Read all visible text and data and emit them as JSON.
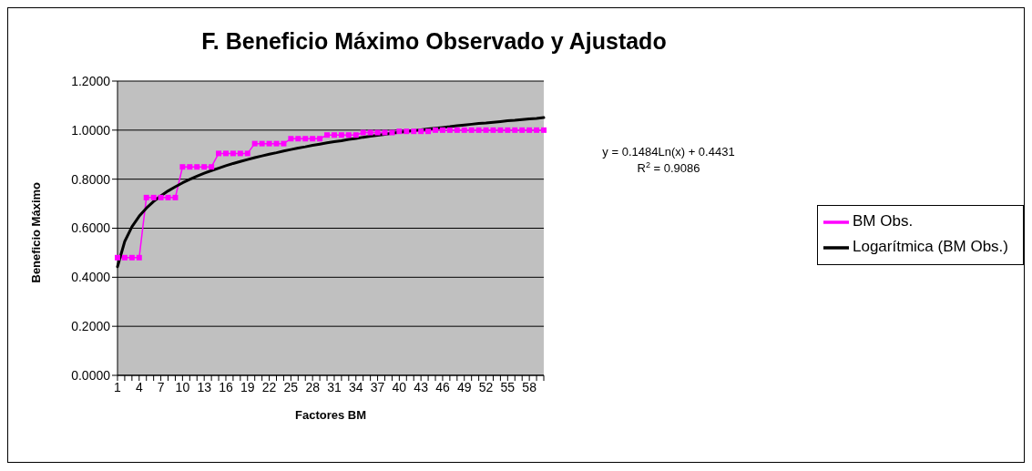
{
  "chart_data": {
    "type": "line",
    "title": "F. Beneficio Máximo Observado y Ajustado",
    "xlabel": "Factores BM",
    "ylabel": "Beneficio Máximo",
    "categories": [
      "1",
      null,
      null,
      "4",
      null,
      null,
      "7",
      null,
      null,
      "10",
      null,
      null,
      "13",
      null,
      null,
      "16",
      null,
      null,
      "19",
      null,
      null,
      "22",
      null,
      null,
      "25",
      null,
      null,
      "28",
      null,
      null,
      "31",
      null,
      null,
      "34",
      null,
      null,
      "37",
      null,
      null,
      "40",
      null,
      null,
      "43",
      null,
      null,
      "46",
      null,
      null,
      "49",
      null,
      null,
      "52",
      null,
      null,
      "55",
      null,
      null,
      "58",
      null,
      null
    ],
    "series": [
      {
        "name": "BM Obs.",
        "color": "#ff00ff",
        "marker": "square",
        "values": [
          0.48,
          0.48,
          0.48,
          0.48,
          0.725,
          0.725,
          0.725,
          0.725,
          0.725,
          0.85,
          0.85,
          0.85,
          0.85,
          0.85,
          0.905,
          0.905,
          0.905,
          0.905,
          0.905,
          0.945,
          0.945,
          0.945,
          0.945,
          0.945,
          0.965,
          0.965,
          0.965,
          0.965,
          0.965,
          0.98,
          0.98,
          0.98,
          0.98,
          0.98,
          0.99,
          0.99,
          0.99,
          0.99,
          0.99,
          0.995,
          0.995,
          0.995,
          0.995,
          0.995,
          1.0,
          1.0,
          1.0,
          1.0,
          1.0,
          1.0,
          1.0,
          1.0,
          1.0,
          1.0,
          1.0,
          1.0,
          1.0,
          1.0,
          1.0,
          1.0
        ]
      },
      {
        "name": "Logarítmica (BM Obs.)",
        "color": "#000000",
        "marker": "none",
        "values": [
          0.443,
          0.546,
          0.606,
          0.649,
          0.682,
          0.709,
          0.732,
          0.752,
          0.769,
          0.785,
          0.799,
          0.812,
          0.824,
          0.835,
          0.845,
          0.855,
          0.864,
          0.872,
          0.88,
          0.888,
          0.895,
          0.902,
          0.908,
          0.915,
          0.921,
          0.927,
          0.932,
          0.938,
          0.943,
          0.948,
          0.953,
          0.957,
          0.962,
          0.966,
          0.971,
          0.975,
          0.979,
          0.983,
          0.987,
          0.991,
          0.994,
          0.998,
          1.001,
          1.005,
          1.008,
          1.011,
          1.014,
          1.018,
          1.021,
          1.024,
          1.027,
          1.029,
          1.032,
          1.035,
          1.038,
          1.04,
          1.043,
          1.046,
          1.048,
          1.051
        ]
      }
    ],
    "ylim": [
      0,
      1.2
    ],
    "yticks": [
      {
        "value": 0,
        "label": "0.0000"
      },
      {
        "value": 0.2,
        "label": "0.2000"
      },
      {
        "value": 0.4,
        "label": "0.4000"
      },
      {
        "value": 0.6,
        "label": "0.6000"
      },
      {
        "value": 0.8,
        "label": "0.8000"
      },
      {
        "value": 1.0,
        "label": "1.0000"
      },
      {
        "value": 1.2,
        "label": "1.2000"
      }
    ],
    "grid": "y",
    "legend": "right",
    "annotations": [
      "y = 0.1484Ln(x) + 0.4431",
      "R$^{2}$ = 0.9086"
    ]
  }
}
